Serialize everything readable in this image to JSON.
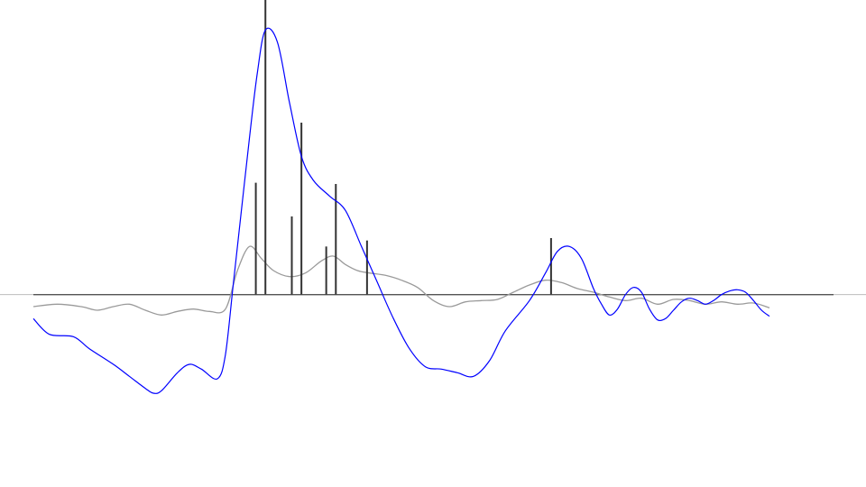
{
  "chart_data": {
    "type": "line",
    "title": "",
    "xlabel": "",
    "ylabel": "",
    "xlim": [
      0,
      100
    ],
    "ylim": [
      -1.45,
      2.3
    ],
    "grid": false,
    "baseline": 0,
    "colors": {
      "blue_curve": "#0000ff",
      "gray_curve": "#9a9a9a",
      "stems": "#333333",
      "baseline": "#555555"
    },
    "series": [
      {
        "key": "blue_curve",
        "points": [
          [
            0,
            -0.2
          ],
          [
            2,
            -0.33
          ],
          [
            5,
            -0.35
          ],
          [
            7,
            -0.45
          ],
          [
            10,
            -0.58
          ],
          [
            12,
            -0.68
          ],
          [
            14,
            -0.78
          ],
          [
            15,
            -0.82
          ],
          [
            16,
            -0.8
          ],
          [
            18,
            -0.65
          ],
          [
            19.5,
            -0.58
          ],
          [
            21,
            -0.62
          ],
          [
            23,
            -0.7
          ],
          [
            24,
            -0.5
          ],
          [
            25,
            0.1
          ],
          [
            26,
            0.7
          ],
          [
            27,
            1.3
          ],
          [
            28,
            1.85
          ],
          [
            29,
            2.2
          ],
          [
            30.5,
            2.1
          ],
          [
            32,
            1.6
          ],
          [
            33.5,
            1.15
          ],
          [
            35,
            0.95
          ],
          [
            37,
            0.82
          ],
          [
            39,
            0.7
          ],
          [
            41,
            0.4
          ],
          [
            43,
            0.1
          ],
          [
            45,
            -0.2
          ],
          [
            47,
            -0.45
          ],
          [
            49,
            -0.6
          ],
          [
            51,
            -0.62
          ],
          [
            53,
            -0.65
          ],
          [
            55,
            -0.68
          ],
          [
            57,
            -0.55
          ],
          [
            59,
            -0.3
          ],
          [
            62,
            -0.05
          ],
          [
            64,
            0.18
          ],
          [
            65.5,
            0.36
          ],
          [
            67,
            0.4
          ],
          [
            68.5,
            0.3
          ],
          [
            70,
            0.05
          ],
          [
            71,
            -0.08
          ],
          [
            72,
            -0.17
          ],
          [
            73,
            -0.12
          ],
          [
            74,
            0.0
          ],
          [
            75,
            0.06
          ],
          [
            76,
            0.02
          ],
          [
            77,
            -0.12
          ],
          [
            78,
            -0.21
          ],
          [
            79,
            -0.2
          ],
          [
            80,
            -0.13
          ],
          [
            81,
            -0.06
          ],
          [
            82,
            -0.03
          ],
          [
            83,
            -0.05
          ],
          [
            84,
            -0.08
          ],
          [
            85,
            -0.05
          ],
          [
            86,
            0.0
          ],
          [
            87,
            0.03
          ],
          [
            88,
            0.04
          ],
          [
            89,
            0.02
          ],
          [
            90,
            -0.05
          ],
          [
            91,
            -0.13
          ],
          [
            92,
            -0.18
          ]
        ]
      },
      {
        "key": "gray_curve",
        "points": [
          [
            0,
            -0.1
          ],
          [
            3,
            -0.08
          ],
          [
            6,
            -0.1
          ],
          [
            8,
            -0.13
          ],
          [
            10,
            -0.1
          ],
          [
            12,
            -0.08
          ],
          [
            14,
            -0.13
          ],
          [
            16,
            -0.17
          ],
          [
            18,
            -0.14
          ],
          [
            20,
            -0.12
          ],
          [
            22,
            -0.14
          ],
          [
            24,
            -0.12
          ],
          [
            25.5,
            0.2
          ],
          [
            27,
            0.4
          ],
          [
            28.5,
            0.3
          ],
          [
            30,
            0.2
          ],
          [
            32,
            0.15
          ],
          [
            34,
            0.18
          ],
          [
            36,
            0.28
          ],
          [
            37.5,
            0.32
          ],
          [
            39,
            0.25
          ],
          [
            40.5,
            0.2
          ],
          [
            42,
            0.18
          ],
          [
            44,
            0.16
          ],
          [
            46,
            0.12
          ],
          [
            48,
            0.06
          ],
          [
            50,
            -0.05
          ],
          [
            52,
            -0.1
          ],
          [
            54,
            -0.06
          ],
          [
            56,
            -0.05
          ],
          [
            58,
            -0.04
          ],
          [
            60,
            0.02
          ],
          [
            62,
            0.08
          ],
          [
            64,
            0.12
          ],
          [
            66,
            0.1
          ],
          [
            68,
            0.05
          ],
          [
            70,
            0.02
          ],
          [
            72,
            -0.02
          ],
          [
            74,
            -0.05
          ],
          [
            76,
            -0.03
          ],
          [
            78,
            -0.08
          ],
          [
            80,
            -0.04
          ],
          [
            82,
            -0.05
          ],
          [
            84,
            -0.08
          ],
          [
            86,
            -0.06
          ],
          [
            88,
            -0.08
          ],
          [
            90,
            -0.07
          ],
          [
            92,
            -0.11
          ]
        ]
      }
    ],
    "stems": [
      {
        "x": 27.8,
        "y": 0.93
      },
      {
        "x": 29.0,
        "y": 2.82
      },
      {
        "x": 32.3,
        "y": 0.65
      },
      {
        "x": 33.5,
        "y": 1.43
      },
      {
        "x": 36.6,
        "y": 0.4
      },
      {
        "x": 37.8,
        "y": 0.92
      },
      {
        "x": 41.7,
        "y": 0.45
      },
      {
        "x": 64.7,
        "y": 0.47
      }
    ]
  }
}
